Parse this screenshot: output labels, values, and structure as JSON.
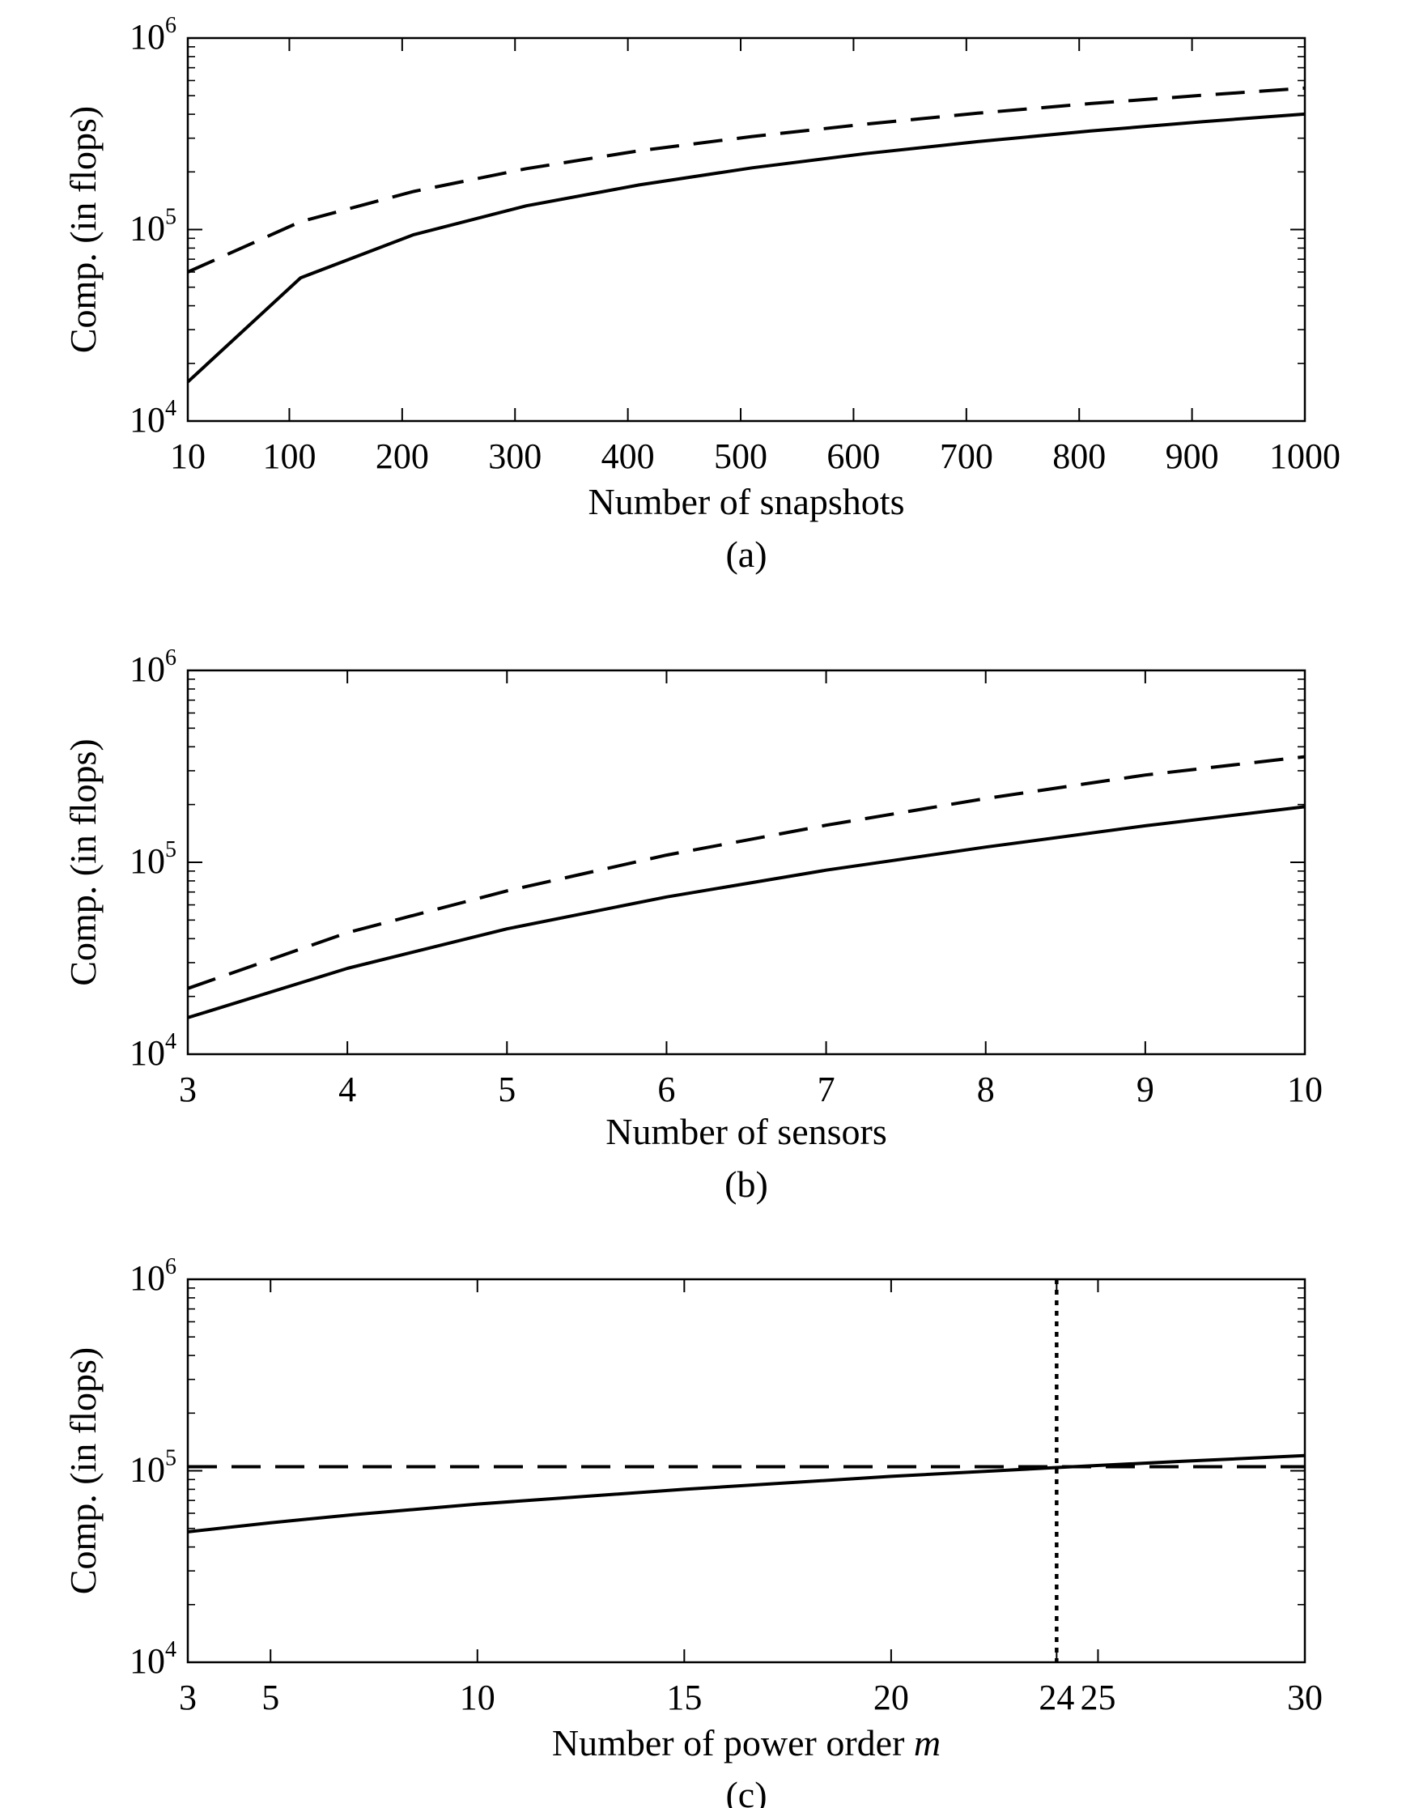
{
  "chart_data": [
    {
      "type": "line",
      "caption": "(a)",
      "xlabel": "Number of snapshots",
      "ylabel": "Comp. (in flops)",
      "yscale": "log",
      "ylim": [
        10000,
        1000000
      ],
      "xlim": [
        10,
        1000
      ],
      "x_ticks": [
        10,
        100,
        200,
        300,
        400,
        500,
        600,
        700,
        800,
        900,
        1000
      ],
      "y_ticks": [
        {
          "base": "10",
          "exp": "4",
          "value": 10000
        },
        {
          "base": "10",
          "exp": "5",
          "value": 100000
        },
        {
          "base": "10",
          "exp": "6",
          "value": 1000000
        }
      ],
      "series": [
        {
          "style": "solid",
          "x": [
            10,
            110,
            210,
            310,
            410,
            510,
            610,
            710,
            810,
            910,
            1000
          ],
          "y": [
            16000,
            56000,
            94000,
            133000,
            171000,
            210000,
            249000,
            288000,
            327000,
            366000,
            401000
          ]
        },
        {
          "style": "dashed",
          "x": [
            10,
            110,
            210,
            310,
            410,
            510,
            610,
            710,
            810,
            910,
            1000
          ],
          "y": [
            60000,
            110000,
            158000,
            208000,
            258000,
            306000,
            355000,
            405000,
            455000,
            503000,
            548000
          ]
        }
      ]
    },
    {
      "type": "line",
      "caption": "(b)",
      "xlabel": "Number of sensors",
      "ylabel": "Comp. (in flops)",
      "yscale": "log",
      "ylim": [
        10000,
        1000000
      ],
      "xlim": [
        3,
        10
      ],
      "x_ticks": [
        3,
        4,
        5,
        6,
        7,
        8,
        9,
        10
      ],
      "y_ticks": [
        {
          "base": "10",
          "exp": "4",
          "value": 10000
        },
        {
          "base": "10",
          "exp": "5",
          "value": 100000
        },
        {
          "base": "10",
          "exp": "6",
          "value": 1000000
        }
      ],
      "series": [
        {
          "style": "solid",
          "x": [
            3,
            4,
            5,
            6,
            7,
            8,
            9,
            10
          ],
          "y": [
            15500,
            28000,
            45000,
            66000,
            91000,
            120000,
            155000,
            195000
          ]
        },
        {
          "style": "dashed",
          "x": [
            3,
            4,
            5,
            6,
            7,
            8,
            9,
            10
          ],
          "y": [
            22000,
            43000,
            71000,
            109000,
            156000,
            215000,
            285000,
            355000
          ]
        }
      ]
    },
    {
      "type": "line",
      "caption": "(c)",
      "xlabel_text": "Number of power order ",
      "xlabel_var": "m",
      "ylabel": "Comp. (in flops)",
      "yscale": "log",
      "ylim": [
        10000,
        1000000
      ],
      "xlim": [
        3,
        30
      ],
      "x_ticks": [
        3,
        5,
        10,
        15,
        20,
        24,
        25,
        30
      ],
      "y_ticks": [
        {
          "base": "10",
          "exp": "4",
          "value": 10000
        },
        {
          "base": "10",
          "exp": "5",
          "value": 100000
        },
        {
          "base": "10",
          "exp": "6",
          "value": 1000000
        }
      ],
      "series": [
        {
          "style": "solid",
          "x": [
            3,
            5,
            7,
            10,
            15,
            20,
            24,
            27,
            30
          ],
          "y": [
            48000,
            53500,
            59000,
            67000,
            80000,
            93500,
            104000,
            112000,
            120000
          ]
        },
        {
          "style": "dashed",
          "x": [
            3,
            30
          ],
          "y": [
            105000,
            105000
          ]
        }
      ],
      "vline": {
        "x": 24,
        "style": "dotted"
      }
    }
  ]
}
